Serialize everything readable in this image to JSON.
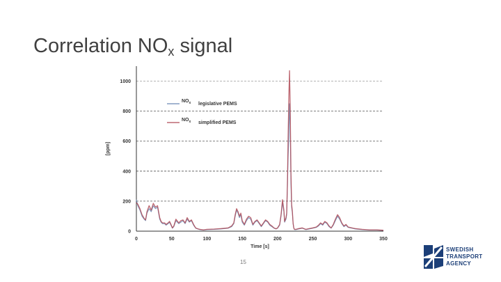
{
  "slide": {
    "title_main": "Correlation NO",
    "title_sub": "x",
    "title_end": " signal",
    "page_number": "15"
  },
  "logo": {
    "lines": [
      "SWEDISH",
      "TRANSPORT",
      "AGENCY"
    ],
    "color": "#1c3f78"
  },
  "chart_data": {
    "type": "line",
    "title": "",
    "xlabel": "Time [s]",
    "ylabel": "[ppm]",
    "xlim": [
      0,
      350
    ],
    "ylim": [
      0,
      1100
    ],
    "x_ticks": [
      0,
      50,
      100,
      150,
      200,
      250,
      300,
      350
    ],
    "y_ticks": [
      0,
      200,
      400,
      600,
      800,
      1000
    ],
    "grid": "horizontal dashed",
    "legend": "top-left",
    "series": [
      {
        "name_main": "NO",
        "name_sub": "x",
        "name_rest": "legislative PEMS",
        "color": "#6b88b3",
        "x": [
          0,
          2,
          5,
          8,
          11,
          13,
          15,
          18,
          21,
          24,
          27,
          30,
          33,
          35,
          37,
          40,
          42,
          45,
          47,
          49,
          51,
          53,
          56,
          60,
          63,
          66,
          69,
          72,
          75,
          78,
          81,
          84,
          87,
          90,
          95,
          100,
          110,
          120,
          130,
          135,
          138,
          140,
          142,
          144,
          146,
          148,
          150,
          153,
          156,
          159,
          162,
          165,
          168,
          171,
          174,
          177,
          180,
          183,
          186,
          189,
          192,
          195,
          198,
          200,
          203,
          205,
          207,
          209,
          210,
          212,
          213,
          214,
          215,
          216,
          217,
          218,
          219,
          220,
          221,
          222,
          223,
          224,
          226,
          230,
          235,
          240,
          245,
          250,
          255,
          258,
          261,
          264,
          267,
          270,
          273,
          276,
          279,
          282,
          285,
          288,
          291,
          294,
          297,
          300,
          310,
          320,
          330,
          340,
          350
        ],
        "y": [
          210,
          170,
          140,
          100,
          80,
          70,
          120,
          150,
          130,
          170,
          150,
          160,
          80,
          60,
          50,
          50,
          40,
          50,
          60,
          40,
          20,
          30,
          70,
          50,
          60,
          70,
          50,
          80,
          60,
          70,
          40,
          20,
          15,
          10,
          8,
          10,
          12,
          15,
          20,
          30,
          50,
          100,
          140,
          120,
          90,
          110,
          60,
          40,
          70,
          90,
          80,
          40,
          60,
          70,
          50,
          30,
          50,
          70,
          60,
          40,
          30,
          20,
          15,
          20,
          40,
          100,
          190,
          130,
          60,
          80,
          110,
          300,
          500,
          620,
          850,
          700,
          320,
          160,
          120,
          50,
          20,
          10,
          10,
          15,
          20,
          10,
          15,
          20,
          25,
          35,
          50,
          40,
          60,
          50,
          30,
          20,
          40,
          70,
          100,
          80,
          50,
          30,
          40,
          25,
          15,
          10,
          8,
          8,
          5
        ]
      },
      {
        "name_main": "NO",
        "name_sub": "x",
        "name_rest": "simplified PEMS",
        "color": "#b04a56",
        "x": [
          0,
          2,
          5,
          8,
          11,
          13,
          15,
          18,
          21,
          24,
          27,
          30,
          33,
          35,
          37,
          40,
          42,
          45,
          47,
          49,
          51,
          53,
          56,
          60,
          63,
          66,
          69,
          72,
          75,
          78,
          81,
          84,
          87,
          90,
          95,
          100,
          110,
          120,
          130,
          135,
          138,
          140,
          142,
          144,
          146,
          148,
          150,
          153,
          156,
          159,
          162,
          165,
          168,
          171,
          174,
          177,
          180,
          183,
          186,
          189,
          192,
          195,
          198,
          200,
          203,
          205,
          207,
          209,
          210,
          212,
          213,
          214,
          215,
          216,
          217,
          218,
          219,
          220,
          221,
          222,
          223,
          224,
          226,
          230,
          235,
          240,
          245,
          250,
          255,
          258,
          261,
          264,
          267,
          270,
          273,
          276,
          279,
          282,
          285,
          288,
          291,
          294,
          297,
          300,
          310,
          320,
          330,
          340,
          350
        ],
        "y": [
          190,
          180,
          150,
          110,
          85,
          75,
          130,
          170,
          140,
          185,
          160,
          170,
          90,
          65,
          55,
          55,
          45,
          55,
          65,
          45,
          22,
          35,
          80,
          55,
          70,
          75,
          55,
          90,
          65,
          75,
          45,
          22,
          16,
          12,
          9,
          12,
          14,
          17,
          22,
          35,
          55,
          110,
          150,
          130,
          100,
          120,
          70,
          45,
          80,
          100,
          90,
          45,
          65,
          75,
          55,
          35,
          55,
          75,
          65,
          45,
          35,
          22,
          16,
          22,
          45,
          110,
          210,
          140,
          65,
          90,
          120,
          330,
          640,
          900,
          1070,
          820,
          400,
          180,
          130,
          55,
          22,
          12,
          12,
          17,
          22,
          12,
          17,
          22,
          28,
          40,
          55,
          45,
          65,
          55,
          35,
          22,
          45,
          80,
          110,
          90,
          55,
          35,
          45,
          28,
          17,
          12,
          9,
          9,
          6
        ]
      }
    ]
  }
}
